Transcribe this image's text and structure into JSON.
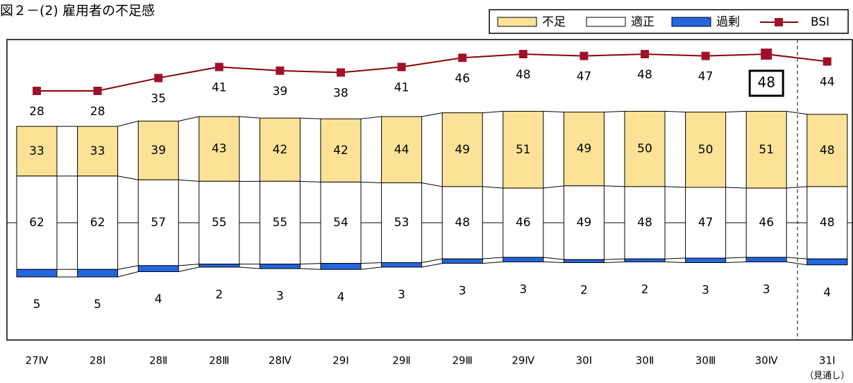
{
  "chart_data": {
    "type": "stacked_bar_line",
    "title": "図２－(2) 雇用者の不足感",
    "categories": [
      "27Ⅳ",
      "28Ⅰ",
      "28Ⅱ",
      "28Ⅲ",
      "28Ⅳ",
      "29Ⅰ",
      "29Ⅱ",
      "29Ⅲ",
      "29Ⅳ",
      "30Ⅰ",
      "30Ⅱ",
      "30Ⅲ",
      "30Ⅳ",
      "31Ⅰ"
    ],
    "forecast_note": "（見通し）",
    "series": [
      {
        "name": "不足",
        "color": "#fbe297",
        "values": [
          33,
          33,
          39,
          43,
          42,
          42,
          44,
          49,
          51,
          49,
          50,
          50,
          51,
          48
        ]
      },
      {
        "name": "適正",
        "color": "#ffffff",
        "values": [
          62,
          62,
          57,
          55,
          55,
          54,
          53,
          48,
          46,
          49,
          48,
          47,
          46,
          48
        ]
      },
      {
        "name": "過剰",
        "color": "#2266e0",
        "values": [
          5,
          5,
          4,
          2,
          3,
          4,
          3,
          3,
          3,
          2,
          2,
          3,
          3,
          4
        ]
      },
      {
        "name": "BSI",
        "color": "#a0102a",
        "values": [
          28,
          28,
          35,
          41,
          39,
          38,
          41,
          46,
          48,
          47,
          48,
          47,
          48,
          44
        ]
      }
    ]
  }
}
